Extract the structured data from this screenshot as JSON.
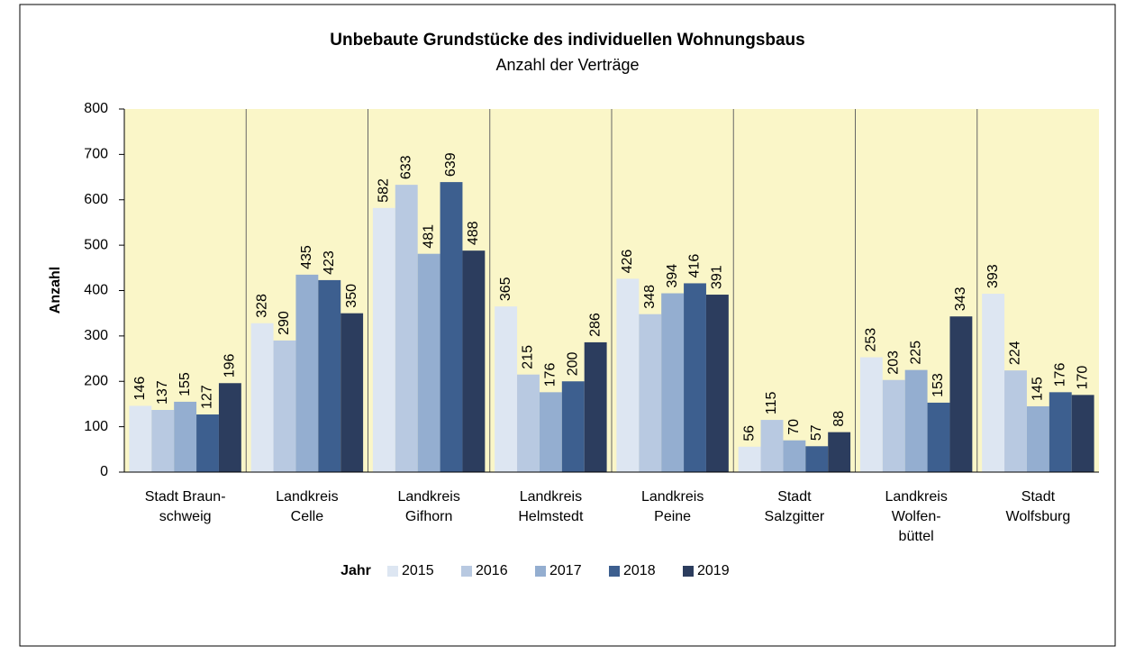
{
  "chart_data": {
    "type": "bar",
    "title": "Unbebaute Grundstücke des individuellen Wohnungsbaus",
    "subtitle": "Anzahl der Verträge",
    "y_label": "Anzahl",
    "legend_title": "Jahr",
    "categories": [
      "Stadt Braun-\nschweig",
      "Landkreis\nCelle",
      "Landkreis\nGifhorn",
      "Landkreis\nHelmstedt",
      "Landkreis\nPeine",
      "Stadt\nSalzgitter",
      "Landkreis\nWolfen-\nbüttel",
      "Stadt\nWolfsburg"
    ],
    "series": [
      {
        "name": "2015",
        "color": "#dde6f2",
        "values": [
          146,
          328,
          582,
          365,
          426,
          56,
          253,
          393
        ]
      },
      {
        "name": "2016",
        "color": "#b8c9e1",
        "values": [
          137,
          290,
          633,
          215,
          348,
          115,
          203,
          224
        ]
      },
      {
        "name": "2017",
        "color": "#94aed0",
        "values": [
          155,
          435,
          481,
          176,
          394,
          70,
          225,
          145
        ]
      },
      {
        "name": "2018",
        "color": "#3d5f8f",
        "values": [
          127,
          423,
          639,
          200,
          416,
          57,
          153,
          176
        ]
      },
      {
        "name": "2019",
        "color": "#2c3d5e",
        "values": [
          196,
          350,
          488,
          286,
          391,
          88,
          343,
          170
        ]
      }
    ],
    "ylim": [
      0,
      800
    ],
    "yticks": [
      0,
      100,
      200,
      300,
      400,
      500,
      600,
      700,
      800
    ],
    "plot_background": "#faf6c8"
  }
}
